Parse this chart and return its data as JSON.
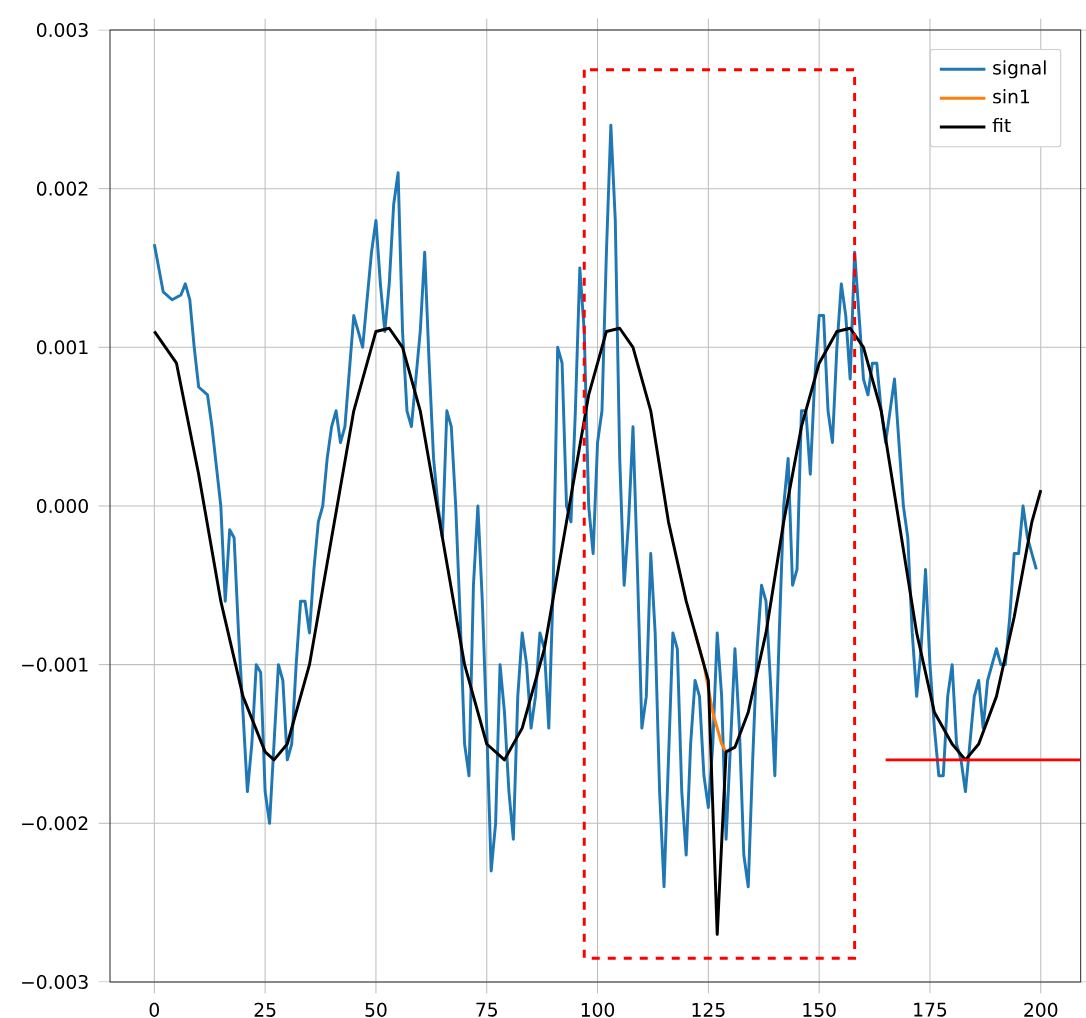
{
  "chart_data": {
    "type": "line",
    "xlim": [
      -10,
      209
    ],
    "ylim": [
      -0.003,
      0.003
    ],
    "xticks": [
      0,
      25,
      50,
      75,
      100,
      125,
      150,
      175,
      200
    ],
    "yticks": [
      {
        "value": -0.003,
        "label": "−0.003"
      },
      {
        "value": -0.002,
        "label": "−0.002"
      },
      {
        "value": -0.001,
        "label": "−0.001"
      },
      {
        "value": 0,
        "label": "0.000"
      },
      {
        "value": 0.001,
        "label": "0.001"
      },
      {
        "value": 0.002,
        "label": "0.002"
      },
      {
        "value": 0.003,
        "label": "0.003"
      }
    ],
    "grid": true,
    "legend": "top right",
    "series": [
      {
        "name": "signal",
        "color": "#1f77b4",
        "x": [
          0,
          2,
          4,
          6,
          7,
          8,
          9,
          10,
          12,
          13,
          15,
          16,
          17,
          18,
          19,
          20,
          21,
          22,
          23,
          24,
          25,
          26,
          27,
          28,
          29,
          30,
          31,
          32,
          33,
          34,
          35,
          36,
          37,
          38,
          39,
          40,
          41,
          42,
          43,
          45,
          46,
          47,
          48,
          49,
          50,
          51,
          52,
          53,
          54,
          55,
          56,
          57,
          58,
          60,
          61,
          62,
          63,
          64,
          65,
          66,
          67,
          68,
          69,
          70,
          71,
          72,
          73,
          74,
          75,
          76,
          77,
          78,
          79,
          80,
          81,
          82,
          83,
          84,
          85,
          86,
          87,
          88,
          89,
          90,
          91,
          92,
          93,
          94,
          95,
          96,
          97,
          98,
          99,
          100,
          101,
          102,
          103,
          104,
          105,
          106,
          107,
          108,
          109,
          110,
          111,
          112,
          113,
          114,
          115,
          116,
          117,
          118,
          119,
          120,
          121,
          122,
          123,
          124,
          125,
          126,
          127,
          128,
          129,
          130,
          131,
          132,
          133,
          134,
          135,
          136,
          137,
          138,
          139,
          140,
          141,
          142,
          143,
          144,
          145,
          146,
          147,
          148,
          149,
          150,
          151,
          152,
          153,
          154,
          155,
          156,
          157,
          158,
          159,
          160,
          161,
          162,
          163,
          164,
          165,
          166,
          167,
          168,
          169,
          170,
          171,
          172,
          173,
          174,
          175,
          176,
          177,
          178,
          179,
          180,
          181,
          182,
          183,
          184,
          185,
          186,
          187,
          188,
          189,
          190,
          191,
          192,
          193,
          194,
          195,
          196,
          197,
          198,
          199
        ],
        "values": [
          0.00165,
          0.00135,
          0.0013,
          0.00133,
          0.0014,
          0.0013,
          0.001,
          0.00075,
          0.0007,
          0.0005,
          0.0,
          -0.0006,
          -0.00015,
          -0.0002,
          -0.0008,
          -0.0013,
          -0.0018,
          -0.0015,
          -0.001,
          -0.00105,
          -0.0018,
          -0.002,
          -0.0015,
          -0.001,
          -0.0011,
          -0.0016,
          -0.0015,
          -0.001,
          -0.0006,
          -0.0006,
          -0.0008,
          -0.0004,
          -0.0001,
          0.0,
          0.0003,
          0.0005,
          0.0006,
          0.0004,
          0.0005,
          0.0012,
          0.0011,
          0.001,
          0.0013,
          0.0016,
          0.0018,
          0.0014,
          0.0011,
          0.0014,
          0.0019,
          0.0021,
          0.0011,
          0.0006,
          0.0005,
          0.0011,
          0.0016,
          0.0009,
          0.0003,
          0.0,
          -0.0002,
          0.0006,
          0.0005,
          0.0,
          -0.0007,
          -0.0015,
          -0.0017,
          -0.0005,
          0.0,
          -0.0006,
          -0.0014,
          -0.0023,
          -0.002,
          -0.001,
          -0.0013,
          -0.0018,
          -0.0021,
          -0.0012,
          -0.0008,
          -0.001,
          -0.0014,
          -0.0012,
          -0.0008,
          -0.0009,
          -0.0014,
          -0.0005,
          0.001,
          0.0009,
          0.0,
          -0.0001,
          0.0006,
          0.0015,
          0.0011,
          0.0,
          -0.0003,
          0.0004,
          0.0006,
          0.0016,
          0.0024,
          0.0018,
          0.0003,
          -0.0005,
          -0.0001,
          0.0005,
          -0.0004,
          -0.0014,
          -0.0012,
          -0.0003,
          -0.0008,
          -0.0018,
          -0.0024,
          -0.0016,
          -0.0008,
          -0.0009,
          -0.0018,
          -0.0022,
          -0.0015,
          -0.0011,
          -0.0012,
          -0.0017,
          -0.0019,
          -0.0015,
          -0.0008,
          -0.0012,
          -0.0021,
          -0.0015,
          -0.0009,
          -0.0014,
          -0.0022,
          -0.0024,
          -0.0016,
          -0.0009,
          -0.0005,
          -0.0006,
          -0.0011,
          -0.0017,
          -0.0008,
          0.0,
          0.0003,
          -0.0005,
          -0.0004,
          0.0006,
          0.0006,
          0.0002,
          0.0008,
          0.0012,
          0.0012,
          0.0006,
          0.0004,
          0.001,
          0.0014,
          0.0012,
          0.0008,
          0.0016,
          0.0012,
          0.0008,
          0.0007,
          0.0009,
          0.0009,
          0.0006,
          0.0004,
          0.0006,
          0.0008,
          0.0004,
          0.0,
          -0.0002,
          -0.0008,
          -0.0012,
          -0.0009,
          -0.0004,
          -0.001,
          -0.0014,
          -0.0017,
          -0.0017,
          -0.0012,
          -0.001,
          -0.0015,
          -0.0016,
          -0.0018,
          -0.0015,
          -0.0012,
          -0.0011,
          -0.0014,
          -0.0011,
          -0.001,
          -0.0009,
          -0.001,
          -0.001,
          -0.0007,
          -0.0003,
          -0.0003,
          0.0,
          -0.0002,
          -0.0003,
          -0.0004
        ]
      },
      {
        "name": "sin1",
        "color": "#ff7f0e",
        "x": [
          122,
          124,
          126,
          128,
          129
        ],
        "values": [
          -0.0008,
          -0.001,
          -0.0013,
          -0.0015,
          -0.00155
        ]
      },
      {
        "name": "fit",
        "color": "#000000",
        "x": [
          0,
          5,
          10,
          15,
          20,
          25,
          27,
          30,
          35,
          40,
          45,
          50,
          53,
          56,
          60,
          65,
          70,
          75,
          79,
          83,
          88,
          93,
          98,
          102,
          105,
          108,
          112,
          116,
          120,
          122,
          124,
          125,
          127,
          129,
          131,
          134,
          138,
          142,
          146,
          150,
          154,
          157,
          160,
          164,
          168,
          172,
          176,
          180,
          183,
          186,
          190,
          194,
          198,
          200
        ],
        "values": [
          0.0011,
          0.0009,
          0.0002,
          -0.0006,
          -0.0012,
          -0.00155,
          -0.0016,
          -0.0015,
          -0.001,
          -0.0002,
          0.0006,
          0.0011,
          0.00112,
          0.001,
          0.0006,
          -0.0002,
          -0.001,
          -0.0015,
          -0.0016,
          -0.0014,
          -0.0009,
          -0.0001,
          0.0007,
          0.0011,
          0.00112,
          0.001,
          0.0006,
          -0.0001,
          -0.0006,
          -0.0008,
          -0.001,
          -0.0011,
          -0.0027,
          -0.00155,
          -0.00152,
          -0.0013,
          -0.0008,
          -0.0001,
          0.0005,
          0.0009,
          0.0011,
          0.00112,
          0.001,
          0.0006,
          -0.0001,
          -0.0008,
          -0.0013,
          -0.0015,
          -0.0016,
          -0.0015,
          -0.0012,
          -0.0007,
          -0.0001,
          0.0001
        ]
      },
      {
        "color": "#ff0000",
        "x": [
          165,
          209
        ],
        "values": [
          -0.0016,
          -0.0016
        ]
      }
    ]
  }
}
